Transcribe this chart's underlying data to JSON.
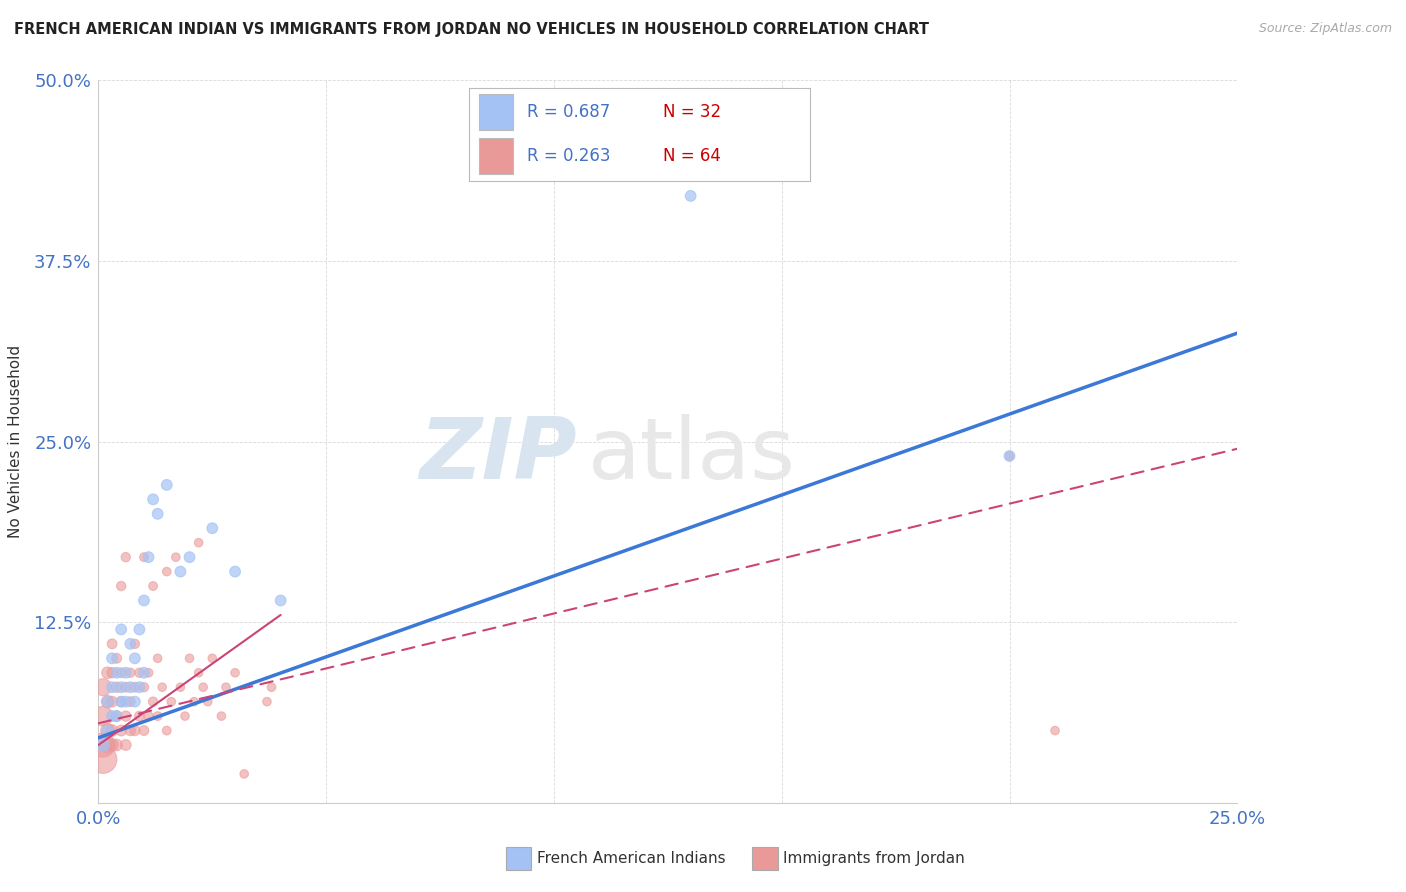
{
  "title": "FRENCH AMERICAN INDIAN VS IMMIGRANTS FROM JORDAN NO VEHICLES IN HOUSEHOLD CORRELATION CHART",
  "source": "Source: ZipAtlas.com",
  "ylabel": "No Vehicles in Household",
  "xlim": [
    0.0,
    0.25
  ],
  "ylim": [
    0.0,
    0.5
  ],
  "xticklabels": [
    "0.0%",
    "",
    "",
    "",
    "",
    "25.0%"
  ],
  "yticklabels": [
    "",
    "12.5%",
    "25.0%",
    "37.5%",
    "50.0%"
  ],
  "legend_R_blue": "R = 0.687",
  "legend_N_blue": "N = 32",
  "legend_R_pink": "R = 0.263",
  "legend_N_pink": "N = 64",
  "legend_label_blue": "French American Indians",
  "legend_label_pink": "Immigrants from Jordan",
  "blue_color": "#a4c2f4",
  "pink_color": "#ea9999",
  "blue_line_color": "#3c78d8",
  "pink_line_color": "#cc4477",
  "watermark_zip": "ZIP",
  "watermark_atlas": "atlas",
  "background_color": "#ffffff",
  "blue_scatter_x": [
    0.001,
    0.002,
    0.002,
    0.003,
    0.003,
    0.003,
    0.004,
    0.004,
    0.005,
    0.005,
    0.005,
    0.006,
    0.006,
    0.007,
    0.007,
    0.008,
    0.008,
    0.009,
    0.009,
    0.01,
    0.01,
    0.011,
    0.012,
    0.013,
    0.015,
    0.018,
    0.02,
    0.025,
    0.03,
    0.04,
    0.13,
    0.2
  ],
  "blue_scatter_y": [
    0.04,
    0.05,
    0.07,
    0.06,
    0.08,
    0.1,
    0.06,
    0.09,
    0.07,
    0.08,
    0.12,
    0.07,
    0.09,
    0.08,
    0.11,
    0.07,
    0.1,
    0.08,
    0.12,
    0.09,
    0.14,
    0.17,
    0.21,
    0.2,
    0.22,
    0.16,
    0.17,
    0.19,
    0.16,
    0.14,
    0.42,
    0.24
  ],
  "blue_scatter_sizes": [
    80,
    60,
    60,
    60,
    60,
    60,
    60,
    60,
    60,
    60,
    60,
    60,
    60,
    60,
    60,
    60,
    60,
    60,
    60,
    60,
    60,
    60,
    60,
    60,
    60,
    60,
    60,
    60,
    60,
    60,
    60,
    60
  ],
  "pink_scatter_x": [
    0.001,
    0.001,
    0.001,
    0.001,
    0.002,
    0.002,
    0.002,
    0.002,
    0.003,
    0.003,
    0.003,
    0.003,
    0.003,
    0.004,
    0.004,
    0.004,
    0.004,
    0.005,
    0.005,
    0.005,
    0.005,
    0.006,
    0.006,
    0.006,
    0.006,
    0.007,
    0.007,
    0.007,
    0.008,
    0.008,
    0.008,
    0.009,
    0.009,
    0.01,
    0.01,
    0.01,
    0.011,
    0.011,
    0.012,
    0.012,
    0.013,
    0.013,
    0.014,
    0.015,
    0.015,
    0.016,
    0.017,
    0.018,
    0.019,
    0.02,
    0.021,
    0.022,
    0.022,
    0.023,
    0.024,
    0.025,
    0.027,
    0.028,
    0.03,
    0.032,
    0.037,
    0.038,
    0.2,
    0.21
  ],
  "pink_scatter_y": [
    0.03,
    0.04,
    0.06,
    0.08,
    0.04,
    0.05,
    0.07,
    0.09,
    0.04,
    0.05,
    0.07,
    0.09,
    0.11,
    0.04,
    0.06,
    0.08,
    0.1,
    0.05,
    0.07,
    0.09,
    0.15,
    0.04,
    0.06,
    0.08,
    0.17,
    0.05,
    0.07,
    0.09,
    0.05,
    0.08,
    0.11,
    0.06,
    0.09,
    0.05,
    0.08,
    0.17,
    0.06,
    0.09,
    0.07,
    0.15,
    0.06,
    0.1,
    0.08,
    0.05,
    0.16,
    0.07,
    0.17,
    0.08,
    0.06,
    0.1,
    0.07,
    0.09,
    0.18,
    0.08,
    0.07,
    0.1,
    0.06,
    0.08,
    0.09,
    0.02,
    0.07,
    0.08,
    0.24,
    0.05
  ],
  "pink_scatter_sizes": [
    400,
    300,
    200,
    150,
    120,
    100,
    80,
    70,
    80,
    70,
    60,
    55,
    50,
    70,
    60,
    55,
    50,
    60,
    55,
    50,
    45,
    60,
    55,
    50,
    45,
    55,
    50,
    45,
    55,
    50,
    45,
    50,
    45,
    50,
    45,
    40,
    45,
    40,
    45,
    40,
    40,
    38,
    38,
    40,
    38,
    38,
    38,
    38,
    38,
    38,
    38,
    38,
    38,
    38,
    38,
    38,
    38,
    38,
    38,
    38,
    38,
    38,
    38,
    38
  ],
  "blue_line_x0": 0.0,
  "blue_line_y0": 0.045,
  "blue_line_x1": 0.25,
  "blue_line_y1": 0.325,
  "pink_line_x0": 0.0,
  "pink_line_y0": 0.055,
  "pink_line_x1": 0.25,
  "pink_line_y1": 0.245
}
